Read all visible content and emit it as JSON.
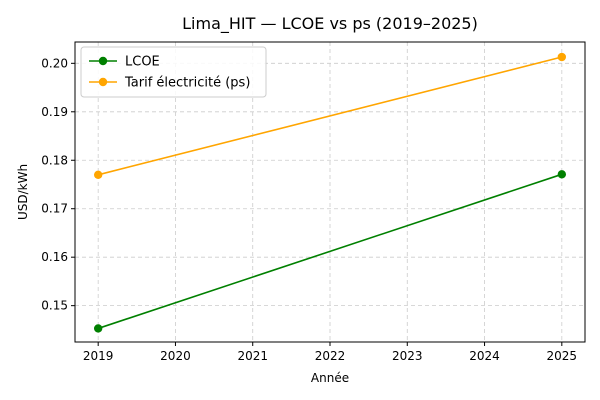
{
  "chart_data": {
    "type": "line",
    "title": "Lima_HIT — LCOE vs ps (2019–2025)",
    "xlabel": "Année",
    "ylabel": "USD/kWh",
    "xlim": [
      2018.7,
      2025.3
    ],
    "ylim": [
      0.1425,
      0.2044
    ],
    "x_ticks": [
      2019,
      2020,
      2021,
      2022,
      2023,
      2024,
      2025
    ],
    "x_tick_labels": [
      "2019",
      "2020",
      "2021",
      "2022",
      "2023",
      "2024",
      "2025"
    ],
    "y_ticks": [
      0.15,
      0.16,
      0.17,
      0.18,
      0.19,
      0.2
    ],
    "y_tick_labels": [
      "0.15",
      "0.16",
      "0.17",
      "0.18",
      "0.19",
      "0.20"
    ],
    "grid": true,
    "legend_position": "top-left",
    "series": [
      {
        "name": "LCOE",
        "color": "#008000",
        "marker": "circle",
        "x": [
          2019,
          2025
        ],
        "y": [
          0.1453,
          0.1771
        ]
      },
      {
        "name": "Tarif électricité (ps)",
        "color": "#FFA500",
        "marker": "circle",
        "x": [
          2019,
          2025
        ],
        "y": [
          0.177,
          0.2013
        ]
      }
    ]
  }
}
